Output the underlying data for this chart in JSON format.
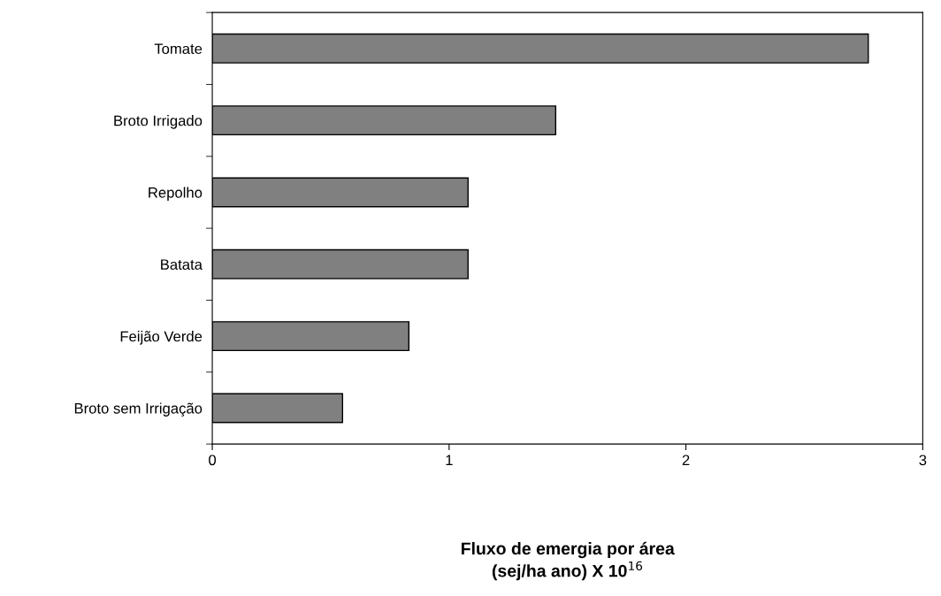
{
  "chart_data": {
    "type": "bar",
    "orientation": "horizontal",
    "categories": [
      "Tomate",
      "Broto Irrigado",
      "Repolho",
      "Batata",
      "Feijão Verde",
      "Broto sem Irrigação"
    ],
    "values": [
      2.77,
      1.45,
      1.08,
      1.08,
      0.83,
      0.55
    ],
    "color": "#808080",
    "xlabel": "Fluxo de emergia por área\n(sej/ha ano) X 10$^{16}$",
    "xlim": [
      0,
      3
    ],
    "xticks": [
      0,
      1,
      2,
      3
    ],
    "grid": false
  }
}
